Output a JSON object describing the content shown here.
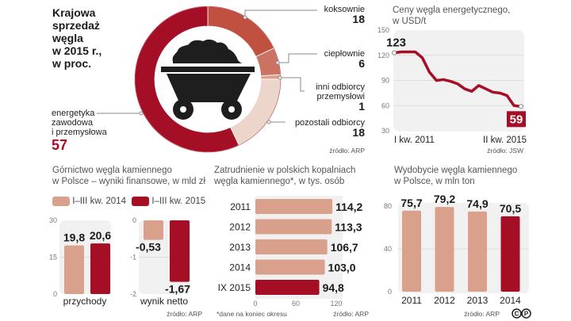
{
  "colors": {
    "dark_red": "#a50f25",
    "brick": "#c0503f",
    "mid_brick": "#cc7262",
    "salmon": "#d9a08c",
    "light_pink": "#ecd6cc",
    "panel_bg": "#f1f1f1",
    "dark": "#1e1e1e"
  },
  "chart_data": [
    {
      "id": "sales",
      "type": "pie",
      "title": "Krajowa sprzedaż węgla w 2015 r., w proc.",
      "title_lines": [
        "Krajowa",
        "sprzedaż",
        "węgla",
        "w 2015 r.,",
        "w proc."
      ],
      "slices": [
        {
          "label": "koksownie",
          "value": 18
        },
        {
          "label": "ciepłownie",
          "value": 6
        },
        {
          "label": "inni odbiorcy przemysłowi",
          "label_lines": [
            "inni odbiorcy",
            "przemysłowi"
          ],
          "value": 1
        },
        {
          "label": "pozostali odbiorcy",
          "value": 18
        },
        {
          "label": "energetyka zawodowa i przemysłowa",
          "label_lines": [
            "energetyka",
            "zawodowa",
            "i przemysłowa"
          ],
          "value": 57
        }
      ],
      "source": "źródło: ARP"
    },
    {
      "id": "price",
      "type": "line",
      "title": "Ceny węgla energetycznego, w USD/t",
      "title_lines": [
        "Ceny węgla energetycznego,",
        "w USD/t"
      ],
      "x_labels": [
        "I kw. 2011",
        "II kw. 2015"
      ],
      "y_ticks": [
        150,
        120,
        90,
        60,
        30
      ],
      "ylim": [
        30,
        150
      ],
      "values": [
        123,
        124,
        124,
        124,
        117,
        100,
        90,
        91,
        89,
        86,
        80,
        77,
        84,
        80,
        76,
        75,
        72,
        60,
        59
      ],
      "start_label": "123",
      "end_label": "59",
      "source": "źródło: JSW"
    },
    {
      "id": "finance",
      "type": "bar",
      "title": "Górnictwo węgla kamiennego w Polsce – wyniki finansowe, w mld zł",
      "title_lines": [
        "Górnictwo węgla kamiennego",
        "w Polsce – wyniki finansowe, w mld zł"
      ],
      "legend": [
        "I–III kw. 2014",
        "I–III kw. 2015"
      ],
      "panels": [
        {
          "category": "przychody",
          "y_ticks": [
            "30",
            "15",
            "0"
          ],
          "ylim": [
            0,
            30
          ],
          "values": [
            19.8,
            20.6
          ],
          "labels": [
            "19,8",
            "20,6"
          ]
        },
        {
          "category": "wynik netto",
          "y_ticks": [
            "0",
            "-1",
            "-2"
          ],
          "ylim": [
            -2,
            0
          ],
          "values": [
            -0.53,
            -1.67
          ],
          "labels": [
            "-0,53",
            "-1,67"
          ]
        }
      ],
      "source": "źródło: ARP"
    },
    {
      "id": "employment",
      "type": "bar",
      "orientation": "horizontal",
      "title": "Zatrudnienie w polskich kopalniach węgla kamiennego*, w tys. osób",
      "title_lines": [
        "Zatrudnienie w polskich kopalniach",
        "węgla kamiennego*, w tys. osób"
      ],
      "categories": [
        "2011",
        "2012",
        "2013",
        "2014",
        "IX 2015"
      ],
      "values": [
        114.2,
        113.3,
        106.7,
        103.0,
        94.8
      ],
      "labels": [
        "114,2",
        "113,3",
        "106,7",
        "103,0",
        "94,8"
      ],
      "x_ticks": [
        "0",
        "60",
        "120"
      ],
      "xlim": [
        0,
        120
      ],
      "footnote": "*dane na koniec okresu",
      "source": "źródło: ARP"
    },
    {
      "id": "production",
      "type": "bar",
      "title": "Wydobycie węgla kamiennego w Polsce, w mln ton",
      "title_lines": [
        "Wydobycie węgla kamiennego",
        "w Polsce, w mln ton"
      ],
      "categories": [
        "2011",
        "2012",
        "2013",
        "2014"
      ],
      "values": [
        75.7,
        79.2,
        74.9,
        70.5
      ],
      "labels": [
        "75,7",
        "79,2",
        "74,9",
        "70,5"
      ],
      "y_ticks": [
        "80",
        "40",
        "0"
      ],
      "ylim": [
        0,
        80
      ],
      "source": "źródło: ARP"
    }
  ],
  "copyright_icon": "cp-logo"
}
